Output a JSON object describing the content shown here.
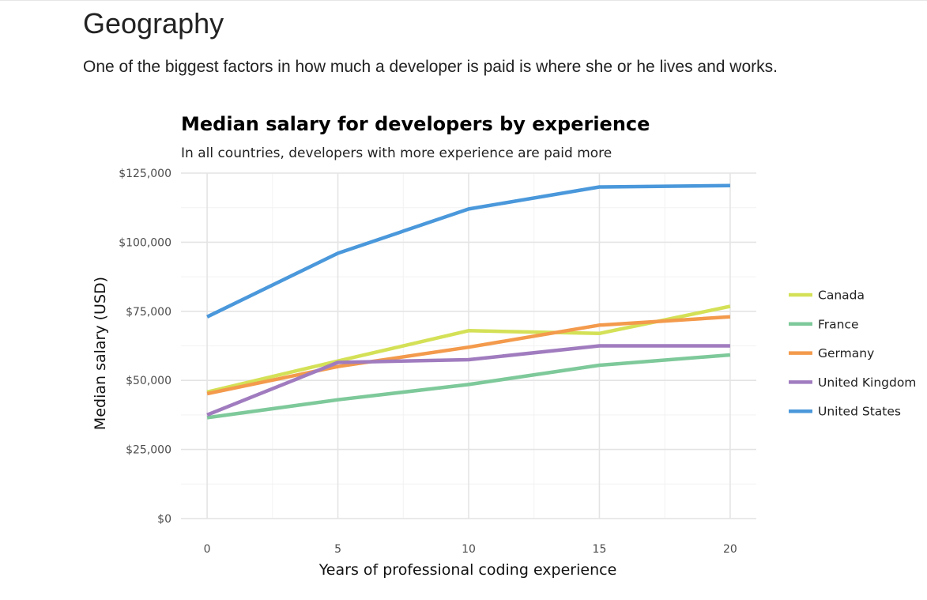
{
  "section": {
    "heading": "Geography",
    "text": "One of the biggest factors in how much a developer is paid is where she or he lives and works."
  },
  "chart_data": {
    "type": "line",
    "title": "Median salary for developers by experience",
    "subtitle": "In all countries, developers with more experience are paid more",
    "xlabel": "Years of professional coding experience",
    "ylabel": "Median salary (USD)",
    "x": [
      0,
      5,
      10,
      15,
      20
    ],
    "xlim": [
      -1,
      21
    ],
    "ylim": [
      0,
      125000
    ],
    "x_ticks": [
      0,
      5,
      10,
      15,
      20
    ],
    "x_tick_labels": [
      "0",
      "5",
      "10",
      "15",
      "20"
    ],
    "y_ticks": [
      0,
      25000,
      50000,
      75000,
      100000,
      125000
    ],
    "y_tick_labels": [
      "$0",
      "$25,000",
      "$50,000",
      "$75,000",
      "$100,000",
      "$125,000"
    ],
    "grid": true,
    "legend_position": "right",
    "series": [
      {
        "name": "Canada",
        "color": "#d4e157",
        "values": [
          45800,
          57000,
          68000,
          67000,
          76800
        ]
      },
      {
        "name": "France",
        "color": "#7ec99a",
        "values": [
          36500,
          43000,
          48500,
          55500,
          59200
        ]
      },
      {
        "name": "Germany",
        "color": "#f39a4c",
        "values": [
          45200,
          55000,
          62000,
          70000,
          73000
        ]
      },
      {
        "name": "United Kingdom",
        "color": "#a07cbf",
        "values": [
          37500,
          56500,
          57500,
          62500,
          62500
        ]
      },
      {
        "name": "United States",
        "color": "#4a98db",
        "values": [
          73000,
          96000,
          112000,
          120000,
          120500
        ]
      }
    ]
  }
}
